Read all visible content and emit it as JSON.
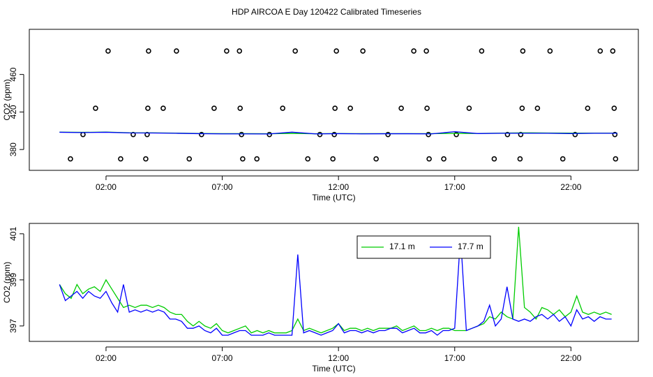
{
  "chart_data": [
    {
      "type": "line",
      "title": "HDP AIRCOA E  Day 120422  Calibrated Timeseries",
      "xlabel": "Time (UTC)",
      "ylabel": "CO2 (ppm)",
      "xlim": [
        -1.3,
        24.9
      ],
      "xticks": [
        {
          "value": 2,
          "label": "02:00"
        },
        {
          "value": 7,
          "label": "07:00"
        },
        {
          "value": 12,
          "label": "12:00"
        },
        {
          "value": 17,
          "label": "17:00"
        },
        {
          "value": 22,
          "label": "22:00"
        }
      ],
      "ylim": [
        357.8,
        508.1
      ],
      "yticks": [
        380,
        420,
        460
      ],
      "x": [
        0,
        1,
        2,
        3,
        4,
        5,
        6,
        7,
        8,
        9,
        10,
        11,
        12,
        13,
        14,
        15,
        16,
        17,
        18,
        19,
        20,
        21,
        22,
        23,
        24
      ],
      "series": [
        {
          "style": "points",
          "color": "#000000",
          "x": [
            2.09,
            3.83,
            5.03,
            7.19,
            7.74,
            10.14,
            11.91,
            13.05,
            15.24,
            15.78,
            18.16,
            19.93,
            21.1,
            23.26,
            23.8,
            1.55,
            3.8,
            4.46,
            6.65,
            7.77,
            9.6,
            11.85,
            12.51,
            14.7,
            15.81,
            17.62,
            19.9,
            20.56,
            22.72,
            23.86,
            1.01,
            3.17,
            3.77,
            6.11,
            7.83,
            9.03,
            11.2,
            11.82,
            14.13,
            15.87,
            17.07,
            19.27,
            19.84,
            22.18,
            23.89,
            0.47,
            2.63,
            3.71,
            5.58,
            7.88,
            8.49,
            10.68,
            11.76,
            13.62,
            15.9,
            16.53,
            18.7,
            19.81,
            21.65,
            23.92
          ],
          "values": [
            485,
            485,
            485,
            485,
            485,
            485,
            485,
            485,
            485,
            485,
            485,
            485,
            485,
            485,
            485,
            424,
            424,
            424,
            424,
            424,
            424,
            424,
            424,
            424,
            424,
            424,
            424,
            424,
            424,
            424,
            396,
            396,
            396,
            396,
            396,
            396,
            396,
            396,
            396,
            396,
            396,
            396,
            396,
            396,
            396,
            370,
            370,
            370,
            370,
            370,
            370,
            370,
            370,
            370,
            370,
            370,
            370,
            370,
            370,
            370
          ]
        },
        {
          "style": "line",
          "color": "#00cc00",
          "values": [
            398.5,
            398.3,
            398.6,
            397.9,
            397.8,
            397.5,
            397.1,
            396.9,
            396.9,
            396.8,
            397.2,
            396.8,
            397.0,
            396.9,
            396.9,
            396.9,
            396.9,
            397.2,
            397.1,
            397.5,
            397.8,
            397.6,
            397.5,
            397.5,
            397.5
          ]
        },
        {
          "style": "line",
          "color": "#0000ff",
          "values": [
            398.4,
            398.1,
            398.4,
            397.7,
            397.6,
            397.3,
            396.9,
            396.7,
            396.7,
            396.6,
            398.5,
            396.7,
            396.9,
            396.7,
            396.8,
            396.8,
            396.7,
            399.0,
            397.0,
            397.3,
            397.3,
            397.3,
            397.0,
            397.3,
            397.3
          ]
        }
      ]
    },
    {
      "type": "line",
      "xlabel": "Time (UTC)",
      "ylabel": "CO2 (ppm)",
      "xlim": [
        -1.3,
        24.9
      ],
      "xticks": [
        {
          "value": 2,
          "label": "02:00"
        },
        {
          "value": 7,
          "label": "07:00"
        },
        {
          "value": 12,
          "label": "12:00"
        },
        {
          "value": 17,
          "label": "17:00"
        },
        {
          "value": 22,
          "label": "22:00"
        }
      ],
      "ylim": [
        396.33,
        401.45
      ],
      "yticks": [
        397,
        399,
        401
      ],
      "legend": "top",
      "x": [
        0,
        0.25,
        0.5,
        0.75,
        1,
        1.25,
        1.5,
        1.75,
        2,
        2.25,
        2.5,
        2.75,
        3,
        3.25,
        3.5,
        3.75,
        4,
        4.25,
        4.5,
        4.75,
        5,
        5.25,
        5.5,
        5.75,
        6,
        6.25,
        6.5,
        6.75,
        7,
        7.25,
        7.5,
        7.75,
        8,
        8.25,
        8.5,
        8.75,
        9,
        9.25,
        9.5,
        9.75,
        10,
        10.25,
        10.5,
        10.75,
        11,
        11.25,
        11.5,
        11.75,
        12,
        12.25,
        12.5,
        12.75,
        13,
        13.25,
        13.5,
        13.75,
        14,
        14.25,
        14.5,
        14.75,
        15,
        15.25,
        15.5,
        15.75,
        16,
        16.25,
        16.5,
        16.75,
        17,
        17.25,
        17.5,
        17.75,
        18,
        18.25,
        18.5,
        18.75,
        19,
        19.25,
        19.5,
        19.75,
        20,
        20.25,
        20.5,
        20.75,
        21,
        21.25,
        21.5,
        21.75,
        22,
        22.25,
        22.5,
        22.75,
        23,
        23.25,
        23.5,
        23.75
      ],
      "series": [
        {
          "name": "17.1 m",
          "style": "line",
          "color": "#00cc00",
          "values": [
            398.8,
            398.4,
            398.2,
            398.8,
            398.4,
            398.6,
            398.7,
            398.5,
            399.0,
            398.6,
            398.2,
            397.8,
            397.9,
            397.8,
            397.9,
            397.9,
            397.8,
            397.9,
            397.8,
            397.6,
            397.5,
            397.5,
            397.2,
            397.0,
            397.2,
            397.0,
            396.9,
            397.1,
            396.8,
            396.7,
            396.8,
            396.9,
            397.0,
            396.7,
            396.8,
            396.7,
            396.8,
            396.7,
            396.7,
            396.7,
            396.8,
            397.3,
            396.8,
            396.9,
            396.8,
            396.7,
            396.8,
            396.9,
            397.1,
            396.8,
            396.9,
            396.9,
            396.8,
            396.9,
            396.8,
            396.9,
            396.9,
            396.9,
            397.0,
            396.8,
            396.9,
            397.0,
            396.8,
            396.8,
            396.9,
            396.8,
            396.9,
            396.9,
            396.8,
            396.8,
            396.8,
            396.9,
            397.0,
            397.1,
            397.4,
            397.3,
            397.6,
            397.4,
            397.3,
            401.3,
            397.8,
            397.6,
            397.3,
            397.8,
            397.7,
            397.5,
            397.7,
            397.4,
            397.6,
            398.3,
            397.6,
            397.5,
            397.6,
            397.5,
            397.6,
            397.5
          ]
        },
        {
          "name": "17.7 m",
          "style": "line",
          "color": "#0000ff",
          "values": [
            398.8,
            398.1,
            398.3,
            398.5,
            398.2,
            398.5,
            398.3,
            398.2,
            398.5,
            398.0,
            397.6,
            398.8,
            397.6,
            397.7,
            397.6,
            397.7,
            397.6,
            397.7,
            397.6,
            397.3,
            397.3,
            397.2,
            396.9,
            396.9,
            397.0,
            396.8,
            396.7,
            396.9,
            396.6,
            396.6,
            396.7,
            396.8,
            396.8,
            396.6,
            396.6,
            396.6,
            396.7,
            396.6,
            396.6,
            396.6,
            396.6,
            400.1,
            396.7,
            396.8,
            396.7,
            396.6,
            396.7,
            396.8,
            397.1,
            396.7,
            396.8,
            396.8,
            396.7,
            396.8,
            396.7,
            396.8,
            396.8,
            396.9,
            396.9,
            396.7,
            396.8,
            396.9,
            396.7,
            396.7,
            396.8,
            396.6,
            396.8,
            396.8,
            396.9,
            400.9,
            396.8,
            396.9,
            397.0,
            397.2,
            397.9,
            397.0,
            397.3,
            398.7,
            397.3,
            397.2,
            397.3,
            397.2,
            397.4,
            397.5,
            397.3,
            397.5,
            397.2,
            397.4,
            397.0,
            397.7,
            397.3,
            397.4,
            397.2,
            397.4,
            397.3,
            397.3
          ]
        }
      ]
    }
  ]
}
